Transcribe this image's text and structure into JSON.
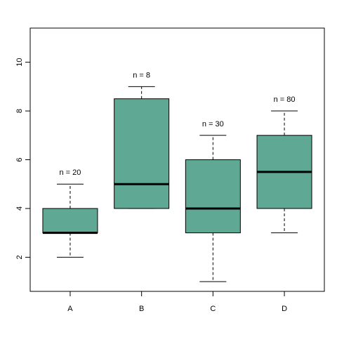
{
  "chart_data": {
    "type": "boxplot",
    "title": "",
    "xlabel": "",
    "ylabel": "",
    "categories": [
      "A",
      "B",
      "C",
      "D"
    ],
    "boxes": [
      {
        "category": "A",
        "min": 2,
        "q1": 3,
        "median": 3,
        "q3": 4,
        "max": 5,
        "n_label": "n = 20"
      },
      {
        "category": "B",
        "min": 4,
        "q1": 4,
        "median": 5,
        "q3": 8.5,
        "max": 9,
        "n_label": "n = 8"
      },
      {
        "category": "C",
        "min": 1,
        "q1": 3,
        "median": 4,
        "q3": 6,
        "max": 7,
        "n_label": "n = 30"
      },
      {
        "category": "D",
        "min": 3,
        "q1": 4,
        "median": 5.5,
        "q3": 7,
        "max": 8,
        "n_label": "n = 80"
      }
    ],
    "ylim": [
      0.6,
      11.4
    ],
    "yticks": [
      2,
      4,
      6,
      8,
      10
    ],
    "ytick_labels": [
      "2",
      "4",
      "6",
      "8",
      "10"
    ],
    "grid": false,
    "legend": "none",
    "box_color": "#5FA994",
    "median_color": "#000000"
  }
}
